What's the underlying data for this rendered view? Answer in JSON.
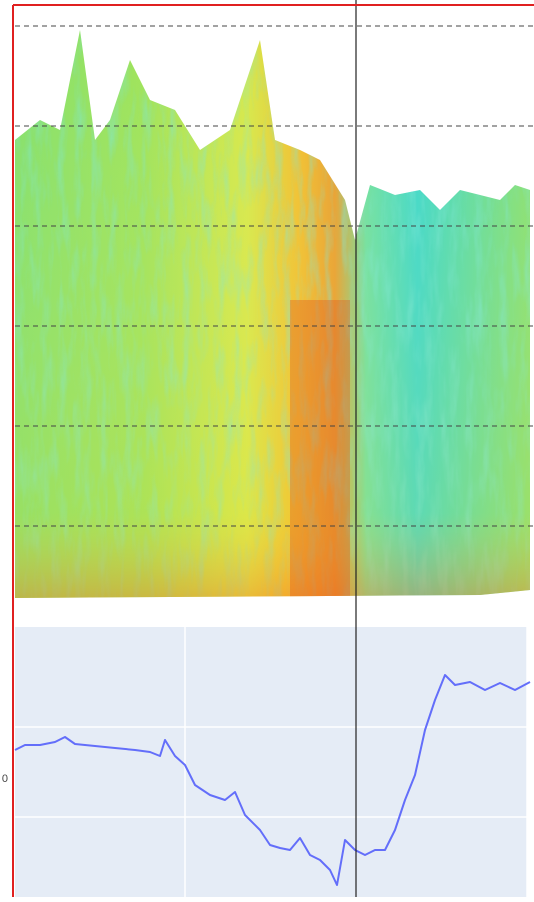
{
  "chart_data": {
    "type": "line",
    "x": [
      15,
      25,
      40,
      55,
      65,
      75,
      95,
      115,
      135,
      150,
      160,
      165,
      175,
      185,
      195,
      210,
      225,
      235,
      245,
      260,
      270,
      280,
      290,
      300,
      310,
      320,
      330,
      337,
      345,
      355,
      365,
      375,
      385,
      395,
      405,
      415,
      425,
      435,
      445,
      455,
      470,
      485,
      500,
      515,
      530
    ],
    "series": [
      {
        "color": "#636efa",
        "values": [
          29,
          34,
          34,
          37,
          42,
          35,
          33,
          31,
          29,
          27,
          23,
          39,
          23,
          14,
          -6,
          -16,
          -21,
          -13,
          -36,
          -51,
          -66,
          -69,
          -71,
          -59,
          -76,
          -81,
          -91,
          -106,
          -61,
          -71,
          -76,
          -71,
          -71,
          -51,
          -21,
          4,
          49,
          79,
          104,
          94,
          97,
          89,
          96,
          89,
          97
        ]
      }
    ],
    "xlim": [
      15,
      534
    ],
    "ylim": [
      -118,
      152
    ],
    "yticks": [
      0
    ]
  }
}
